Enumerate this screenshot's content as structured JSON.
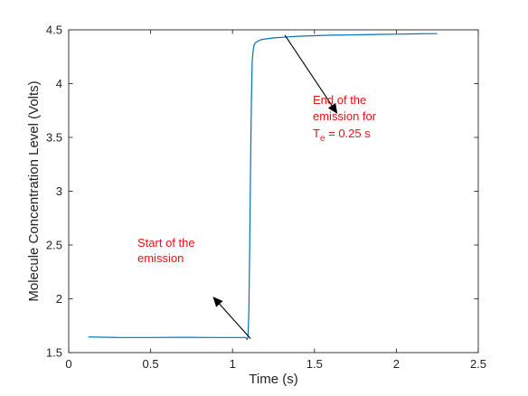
{
  "chart_data": {
    "type": "line",
    "xlabel": "Time (s)",
    "ylabel": "Molecule Concentration Level (Volts)",
    "xlim": [
      0,
      2.5
    ],
    "ylim": [
      1.5,
      4.5
    ],
    "xticks": [
      "0",
      "0.5",
      "1",
      "1.5",
      "2",
      "2.5"
    ],
    "yticks": [
      "1.5",
      "2",
      "2.5",
      "3",
      "3.5",
      "4",
      "4.5"
    ],
    "grid": false,
    "series": [
      {
        "color": "#0072BD",
        "x": [
          0.12,
          0.3,
          0.5,
          0.7,
          0.9,
          1.05,
          1.08,
          1.09,
          1.095,
          1.1,
          1.105,
          1.11,
          1.115,
          1.12,
          1.125,
          1.13,
          1.135,
          1.14,
          1.15,
          1.16,
          1.18,
          1.2,
          1.25,
          1.3,
          1.35,
          1.4,
          1.5,
          1.6,
          1.7,
          1.8,
          1.9,
          2.0,
          2.1,
          2.2,
          2.25
        ],
        "y": [
          1.645,
          1.64,
          1.64,
          1.642,
          1.64,
          1.64,
          1.64,
          1.62,
          1.66,
          1.9,
          2.5,
          3.2,
          3.8,
          4.2,
          4.3,
          4.35,
          4.37,
          4.38,
          4.39,
          4.4,
          4.41,
          4.415,
          4.425,
          4.43,
          4.435,
          4.44,
          4.445,
          4.45,
          4.452,
          4.455,
          4.458,
          4.46,
          4.462,
          4.465,
          4.465
        ]
      }
    ],
    "annotations": [
      {
        "text_lines": [
          "Start of the",
          "emission"
        ],
        "color": "#ee1111",
        "arrow_from": [
          1.11,
          1.63
        ],
        "arrow_to": [
          0.88,
          2.02
        ]
      },
      {
        "text_lines": [
          "End of the",
          "emission for"
        ],
        "sub_line": {
          "main": "T",
          "sub": "e",
          "rest": " = 0.25 s"
        },
        "color": "#ee1111",
        "arrow_from": [
          1.32,
          4.45
        ],
        "arrow_to": [
          1.64,
          3.72
        ]
      }
    ]
  }
}
